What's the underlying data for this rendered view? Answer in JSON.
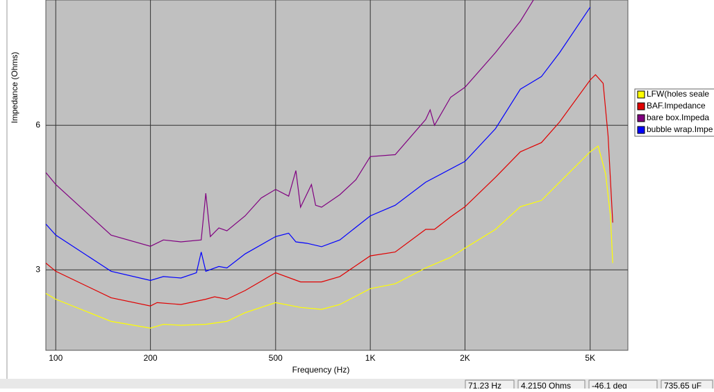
{
  "chart_data": {
    "type": "line",
    "y_label": "Impedance (Ohms)",
    "x_label": "Frequency (Hz)",
    "xlim": [
      93,
      6590
    ],
    "ylim": [
      1.33,
      8.6
    ],
    "log_x": true,
    "grid": true,
    "legend": "right",
    "xticks": [
      100,
      200,
      500,
      {
        "value": 1000,
        "label": "1K"
      },
      {
        "value": 2000,
        "label": "2K"
      },
      {
        "value": 5000,
        "label": "5K"
      }
    ],
    "yticks": [
      3,
      6
    ],
    "series": [
      {
        "name": "LFW(holes seale",
        "color": "#ffff00",
        "x": [
          93,
          100,
          150,
          200,
          220,
          250,
          300,
          350,
          400,
          500,
          600,
          700,
          800,
          1000,
          1200,
          1500,
          1800,
          2000,
          2500,
          3000,
          3500,
          4000,
          5000,
          5300,
          5600,
          5800,
          5900
        ],
        "values": [
          2.51,
          2.39,
          1.93,
          1.79,
          1.87,
          1.85,
          1.87,
          1.93,
          2.11,
          2.32,
          2.22,
          2.18,
          2.28,
          2.61,
          2.71,
          3.04,
          3.26,
          3.45,
          3.84,
          4.31,
          4.44,
          4.82,
          5.45,
          5.57,
          4.99,
          4.12,
          3.14
        ]
      },
      {
        "name": "BAF.Impedance",
        "color": "#e00000",
        "x": [
          93,
          100,
          150,
          200,
          210,
          250,
          300,
          320,
          350,
          400,
          500,
          600,
          700,
          800,
          1000,
          1200,
          1500,
          1600,
          1800,
          2000,
          2500,
          3000,
          3500,
          4000,
          5000,
          5200,
          5500,
          5700,
          5900
        ],
        "values": [
          3.14,
          2.97,
          2.42,
          2.25,
          2.32,
          2.28,
          2.39,
          2.44,
          2.39,
          2.57,
          2.94,
          2.75,
          2.75,
          2.86,
          3.29,
          3.37,
          3.84,
          3.84,
          4.1,
          4.31,
          4.92,
          5.45,
          5.64,
          6.07,
          6.94,
          7.05,
          6.87,
          5.78,
          3.98
        ]
      },
      {
        "name": "bare box.Impeda",
        "color": "#800080",
        "x": [
          93,
          100,
          150,
          200,
          220,
          250,
          290,
          300,
          310,
          330,
          350,
          400,
          450,
          500,
          550,
          580,
          600,
          650,
          670,
          700,
          800,
          900,
          1000,
          1200,
          1500,
          1550,
          1600,
          1800,
          2000,
          2500,
          3000,
          3300
        ],
        "values": [
          5.02,
          4.77,
          3.72,
          3.49,
          3.62,
          3.58,
          3.62,
          4.59,
          3.69,
          3.87,
          3.81,
          4.12,
          4.49,
          4.67,
          4.53,
          5.06,
          4.3,
          4.77,
          4.34,
          4.3,
          4.56,
          4.87,
          5.35,
          5.39,
          6.12,
          6.32,
          6.0,
          6.58,
          6.79,
          7.51,
          8.16,
          8.6
        ]
      },
      {
        "name": "bubble wrap.Impe",
        "color": "#0000ff",
        "x": [
          93,
          100,
          150,
          200,
          220,
          250,
          280,
          290,
          300,
          330,
          350,
          400,
          500,
          550,
          580,
          630,
          700,
          800,
          1000,
          1200,
          1500,
          2000,
          2500,
          3000,
          3500,
          4000,
          5000
        ],
        "values": [
          3.95,
          3.72,
          2.97,
          2.78,
          2.86,
          2.83,
          2.94,
          3.37,
          2.97,
          3.07,
          3.04,
          3.33,
          3.69,
          3.76,
          3.58,
          3.55,
          3.48,
          3.62,
          4.12,
          4.34,
          4.82,
          5.25,
          5.93,
          6.75,
          7.01,
          7.51,
          8.45
        ]
      }
    ]
  },
  "status_bar": [
    "71.23 Hz",
    "4.2150 Ohms",
    "-46.1 deg",
    "735.65 uF"
  ]
}
